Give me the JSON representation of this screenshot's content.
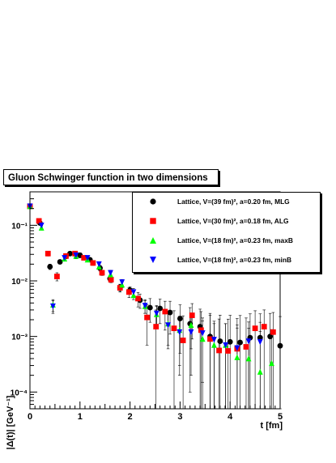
{
  "title": "Gluon Schwinger function in two dimensions",
  "chart_data": {
    "type": "scatter",
    "xlabel": "t [fm]",
    "ylabel": "|Δ(t)| [GeV⁻¹]",
    "xlim": [
      0,
      5
    ],
    "ylim": [
      5e-05,
      0.4
    ],
    "yscale": "log",
    "x_ticks": [
      "0",
      "1",
      "2",
      "3",
      "4",
      "5"
    ],
    "y_ticks": [
      "10⁻⁴",
      "10⁻³",
      "10⁻²",
      "10⁻¹"
    ],
    "legend_position": "top-right",
    "series": [
      {
        "name": "Lattice, V=(39 fm)², a=0.20 fm, MLG",
        "marker": "circle",
        "color": "#000000",
        "x": [
          0.0,
          0.2,
          0.4,
          0.6,
          0.8,
          1.0,
          1.2,
          1.4,
          1.6,
          1.8,
          2.0,
          2.2,
          2.4,
          2.6,
          2.8,
          3.0,
          3.2,
          3.4,
          3.6,
          3.8,
          4.0,
          4.2,
          4.4,
          4.6,
          4.8,
          5.0
        ],
        "y": [
          0.22,
          0.11,
          0.018,
          0.022,
          0.031,
          0.029,
          0.024,
          0.017,
          0.011,
          0.0075,
          0.0068,
          0.0045,
          0.0033,
          0.0032,
          0.0027,
          0.0021,
          0.0017,
          0.0015,
          0.001,
          0.00082,
          0.0008,
          0.00078,
          0.00095,
          0.00095,
          0.001,
          0.00068
        ],
        "err": [
          0.02,
          0.01,
          0.002,
          0.002,
          0.003,
          0.003,
          0.002,
          0.002,
          0.0015,
          0.001,
          0.001,
          0.0013,
          0.0015,
          0.0015,
          0.0016,
          0.0016,
          0.0016,
          0.0016,
          0.0016,
          0.0016,
          0.0016,
          0.0016,
          0.0016,
          0.0016,
          0.0016,
          0.0016
        ]
      },
      {
        "name": "Lattice, V=(30 fm)², a=0.18 fm, ALG",
        "marker": "square",
        "color": "#ff0000",
        "x": [
          0.0,
          0.18,
          0.36,
          0.54,
          0.72,
          0.9,
          1.08,
          1.26,
          1.44,
          1.62,
          1.8,
          1.98,
          2.16,
          2.34,
          2.52,
          2.7,
          2.88,
          3.06,
          3.24,
          3.42,
          3.6,
          3.78,
          3.96,
          4.14,
          4.32,
          4.5,
          4.68,
          4.86
        ],
        "y": [
          0.22,
          0.12,
          0.031,
          0.012,
          0.028,
          0.031,
          0.026,
          0.021,
          0.014,
          0.0105,
          0.0075,
          0.0063,
          0.0048,
          0.0022,
          0.0015,
          0.0028,
          0.0014,
          0.00085,
          0.0024,
          0.0013,
          0.0009,
          0.00056,
          0.00055,
          0.0006,
          0.00065,
          0.0014,
          0.0015,
          0.0012
        ],
        "err": [
          0.02,
          0.012,
          0.003,
          0.002,
          0.003,
          0.003,
          0.002,
          0.002,
          0.0015,
          0.0012,
          0.0012,
          0.0013,
          0.0014,
          0.0015,
          0.0015,
          0.0015,
          0.0015,
          0.0015,
          0.0015,
          0.0015,
          0.0015,
          0.0015,
          0.0015,
          0.0015,
          0.0015,
          0.0015,
          0.0015,
          0.0015
        ]
      },
      {
        "name": "Lattice, V=(18 fm)², a=0.23 fm, maxB",
        "marker": "triangle-up",
        "color": "#00ff00",
        "x": [
          0.0,
          0.23,
          0.46,
          0.69,
          0.92,
          1.15,
          1.38,
          1.61,
          1.84,
          2.07,
          2.3,
          2.53,
          2.76,
          2.99,
          3.22,
          3.45,
          3.68,
          3.91,
          4.14,
          4.37,
          4.6,
          4.83
        ],
        "y": [
          0.22,
          0.09,
          0.0037,
          0.025,
          0.028,
          0.024,
          0.018,
          0.013,
          0.0085,
          0.0055,
          0.0035,
          0.0025,
          0.0017,
          0.0013,
          0.0016,
          0.0009,
          0.0007,
          0.0007,
          0.00042,
          0.0004,
          0.00023,
          0.00033
        ],
        "err": [
          0.02,
          0.008,
          0.0009,
          0.002,
          0.003,
          0.002,
          0.002,
          0.0015,
          0.001,
          0.0009,
          0.0009,
          0.001,
          0.001,
          0.001,
          0.001,
          0.001,
          0.001,
          0.001,
          0.001,
          0.001,
          0.001,
          0.001
        ]
      },
      {
        "name": "Lattice, V=(18 fm)², a=0.23 fm, minB",
        "marker": "triangle-down",
        "color": "#0000ff",
        "x": [
          0.0,
          0.23,
          0.46,
          0.69,
          0.92,
          1.15,
          1.38,
          1.61,
          1.84,
          2.07,
          2.3,
          2.53,
          2.76,
          2.99,
          3.22,
          3.45,
          3.68,
          3.91,
          4.14,
          4.37,
          4.6
        ],
        "y": [
          0.22,
          0.1,
          0.0035,
          0.026,
          0.029,
          0.026,
          0.02,
          0.014,
          0.0095,
          0.0063,
          0.0036,
          0.0026,
          0.0016,
          0.0012,
          0.0012,
          0.00115,
          0.00088,
          0.0007,
          0.00062,
          0.00082,
          0.0008
        ],
        "err": [
          0.02,
          0.009,
          0.0009,
          0.002,
          0.003,
          0.002,
          0.002,
          0.0015,
          0.0011,
          0.001,
          0.001,
          0.001,
          0.001,
          0.001,
          0.001,
          0.001,
          0.001,
          0.001,
          0.001,
          0.001,
          0.001
        ]
      }
    ]
  }
}
